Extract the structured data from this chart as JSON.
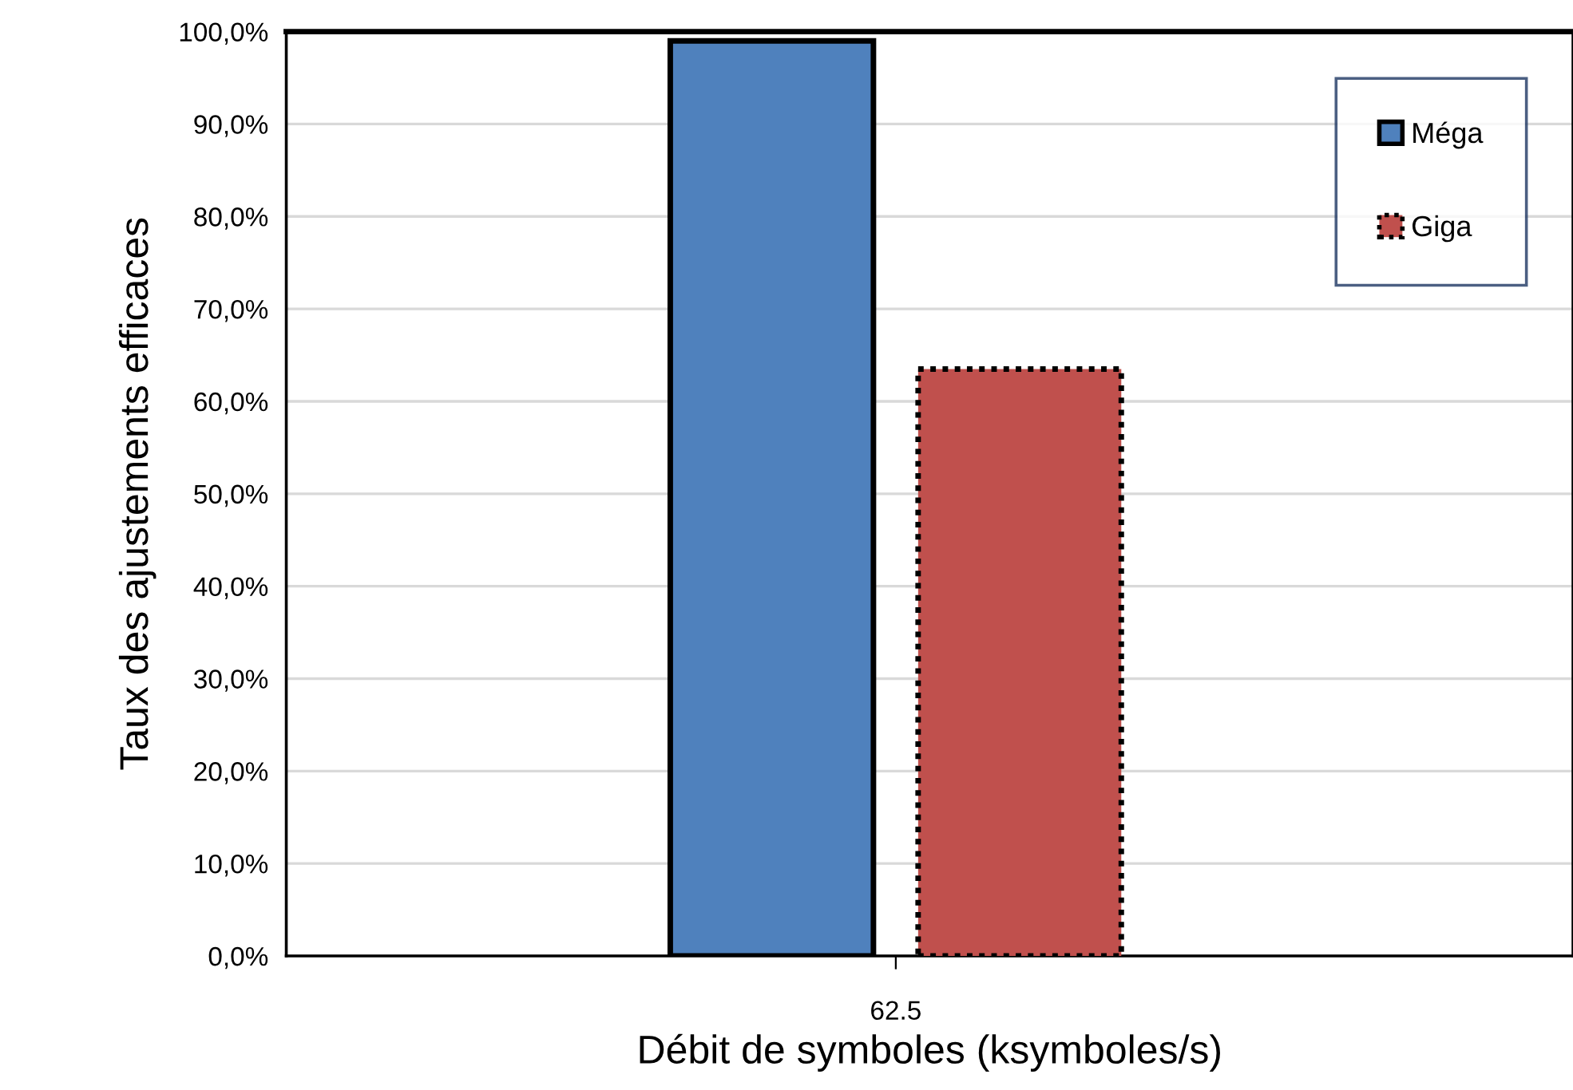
{
  "chart_data": {
    "type": "bar",
    "xlabel": "Débit de symboles (ksymboles/s)",
    "ylabel": "Taux des ajustements efficaces",
    "categories": [
      "62.5"
    ],
    "series": [
      {
        "name": "Méga",
        "color": "#4f81bd",
        "values": [
          99.0
        ],
        "line_style": "solid"
      },
      {
        "name": "Giga",
        "color": "#c0504d",
        "values": [
          63.5
        ],
        "line_style": "dotted"
      }
    ],
    "ylim": [
      0,
      100
    ],
    "yticks": [
      {
        "value": 0,
        "label": "0,0%"
      },
      {
        "value": 10,
        "label": "10,0%"
      },
      {
        "value": 20,
        "label": "20,0%"
      },
      {
        "value": 30,
        "label": "30,0%"
      },
      {
        "value": 40,
        "label": "40,0%"
      },
      {
        "value": 50,
        "label": "50,0%"
      },
      {
        "value": 60,
        "label": "60,0%"
      },
      {
        "value": 70,
        "label": "70,0%"
      },
      {
        "value": 80,
        "label": "80,0%"
      },
      {
        "value": 90,
        "label": "90,0%"
      },
      {
        "value": 100,
        "label": "100,0%"
      }
    ],
    "grid": "y",
    "legend": "top right"
  }
}
